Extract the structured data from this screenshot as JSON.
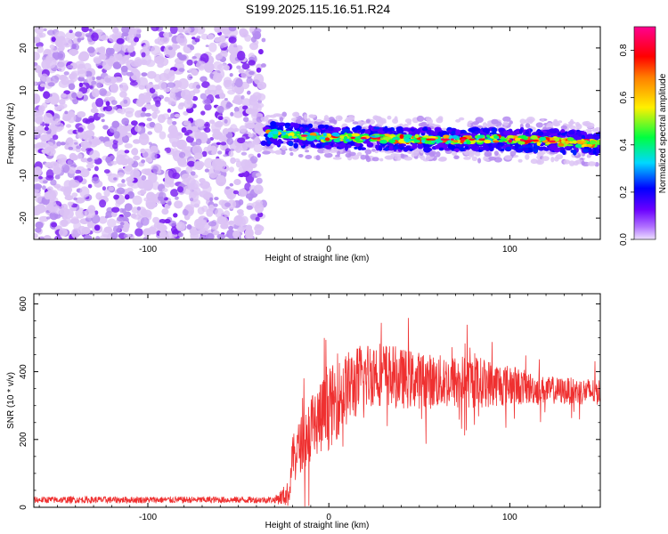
{
  "title": "S199.2025.115.16.51.R24",
  "colors": {
    "snr_line": "#ef3030",
    "speckle_light": "#dcc3f5",
    "speckle_mid": "#b48af0",
    "speckle_dark": "#7a1ff0"
  },
  "chart_data": [
    {
      "type": "heatmap",
      "title": "S199.2025.115.16.51.R24",
      "xlabel": "Height of straight line (km)",
      "ylabel": "Frequency (Hz)",
      "xlim": [
        -163,
        150
      ],
      "ylim": [
        -25,
        25
      ],
      "x_ticks": [
        -100,
        0,
        100
      ],
      "x_tick_labels": [
        "-100",
        "0",
        "100"
      ],
      "y_ticks": [
        20,
        10,
        0,
        -10,
        -20
      ],
      "y_tick_labels": [
        "20",
        "10",
        "0",
        "-10",
        "-20"
      ],
      "colorbar": {
        "label": "Normalized spectral amplitude",
        "range": [
          0,
          0.9
        ],
        "ticks": [
          0.0,
          0.2,
          0.4,
          0.6,
          0.8
        ],
        "tick_labels": [
          "0.0",
          "0.2",
          "0.4",
          "0.6",
          "0.8"
        ],
        "colormap": "hsv-rainbow (violet → blue → cyan → green → yellow → red → magenta)"
      },
      "regions": [
        {
          "description": "noise",
          "x_range": [
            -163,
            -36
          ],
          "y_range": [
            -25,
            25
          ],
          "amplitude": [
            0.0,
            0.25
          ]
        },
        {
          "description": "signal band",
          "x_range": [
            -36,
            150
          ],
          "center_frequency_hz": [
            [
              -36,
              0
            ],
            [
              0,
              -1
            ],
            [
              50,
              -1.5
            ],
            [
              100,
              -1.5
            ],
            [
              150,
              -2.5
            ]
          ],
          "half_width_hz": 2.5,
          "peak_amplitude": 0.9
        }
      ]
    },
    {
      "type": "line",
      "xlabel": "Height of straight line (km)",
      "ylabel": "SNR (10 * v/v)",
      "xlim": [
        -163,
        150
      ],
      "ylim": [
        0,
        630
      ],
      "x_ticks": [
        -100,
        0,
        100
      ],
      "x_tick_labels": [
        "-100",
        "0",
        "100"
      ],
      "y_ticks": [
        0,
        200,
        400,
        600
      ],
      "y_tick_labels": [
        "0",
        "200",
        "400",
        "600"
      ],
      "series": [
        {
          "color": "#ef3030",
          "envelope": [
            {
              "x": -163,
              "mean": 22,
              "spread": 10
            },
            {
              "x": -30,
              "mean": 22,
              "spread": 10
            },
            {
              "x": -22,
              "mean": 40,
              "spread": 40
            },
            {
              "x": -20,
              "mean": 150,
              "spread": 60
            },
            {
              "x": -10,
              "mean": 230,
              "spread": 110
            },
            {
              "x": 0,
              "mean": 290,
              "spread": 120
            },
            {
              "x": 10,
              "mean": 350,
              "spread": 110
            },
            {
              "x": 25,
              "mean": 400,
              "spread": 100
            },
            {
              "x": 40,
              "mean": 380,
              "spread": 90
            },
            {
              "x": 60,
              "mean": 370,
              "spread": 80
            },
            {
              "x": 80,
              "mean": 370,
              "spread": 80
            },
            {
              "x": 100,
              "mean": 360,
              "spread": 60
            },
            {
              "x": 120,
              "mean": 345,
              "spread": 40
            },
            {
              "x": 150,
              "mean": 340,
              "spread": 40
            }
          ]
        }
      ]
    }
  ]
}
